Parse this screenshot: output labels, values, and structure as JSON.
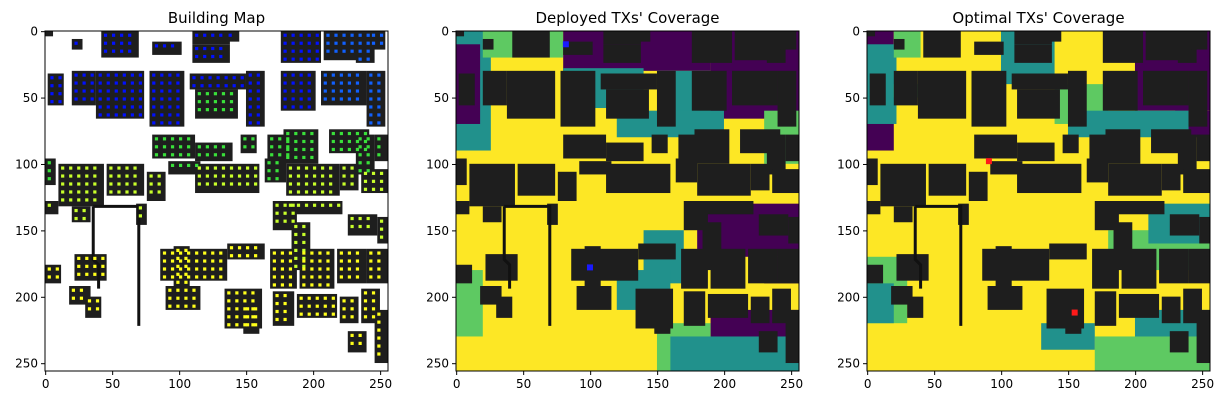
{
  "chart_data": [
    {
      "type": "heatmap",
      "title": "Building Map",
      "xlim": [
        0,
        255
      ],
      "ylim": [
        255,
        0
      ],
      "xticks": [
        "0",
        "50",
        "100",
        "150",
        "200",
        "250"
      ],
      "yticks": [
        "0",
        "50",
        "100",
        "150",
        "200",
        "250"
      ],
      "grid": false
    },
    {
      "type": "heatmap",
      "title": "Deployed TXs' Coverage",
      "xlim": [
        0,
        255
      ],
      "ylim": [
        255,
        0
      ],
      "xticks": [
        "0",
        "50",
        "100",
        "150",
        "200",
        "250"
      ],
      "yticks": [
        "0",
        "50",
        "100",
        "150",
        "200",
        "250"
      ],
      "tx_points": [
        [
          82,
          10
        ],
        [
          100,
          178
        ]
      ],
      "tx_color": "#1a1aff",
      "grid": false
    },
    {
      "type": "heatmap",
      "title": "Optimal TXs' Coverage",
      "xlim": [
        0,
        255
      ],
      "ylim": [
        255,
        0
      ],
      "xticks": [
        "0",
        "50",
        "100",
        "150",
        "200",
        "250"
      ],
      "yticks": [
        "0",
        "50",
        "100",
        "150",
        "200",
        "250"
      ],
      "tx_points": [
        [
          91,
          98
        ],
        [
          155,
          212
        ]
      ],
      "tx_color": "#ff1a1a",
      "grid": false
    }
  ],
  "colors": {
    "building": "#1e1e1e",
    "coverage_high": "#fde725",
    "coverage_mid": "#5ec962",
    "coverage_low": "#21918c",
    "coverage_none": "#440154",
    "map_background": "#ffffff"
  }
}
